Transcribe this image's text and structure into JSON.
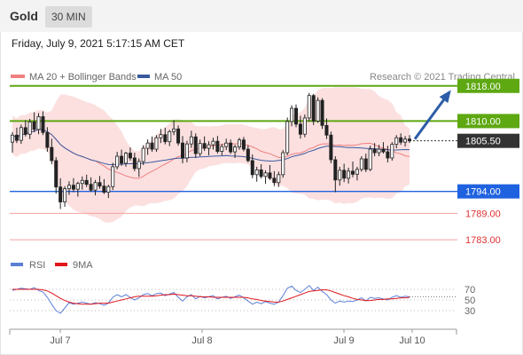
{
  "header": {
    "symbol": "Gold",
    "timeframe": "30 MIN",
    "datetime": "Friday, July 9, 2021 5:17:15 AM CET"
  },
  "legend": {
    "ma20_label": "MA 20 + Bollinger Bands",
    "ma50_label": "MA 50",
    "copyright": "Research © 2021 Trading Central",
    "rsi_label": "RSI",
    "rsi_ma_label": "9MA"
  },
  "colors": {
    "ma20": "#f08080",
    "bollinger_fill": "#fcdada",
    "ma50": "#3a5aa0",
    "resistance": "#5ea812",
    "support": "#1f62e0",
    "red_level": "#e33b3b",
    "candle": "#222222",
    "arrow": "#2d5da8",
    "current_price_bg": "#333333",
    "rsi": "#5b7fd6",
    "rsi_ma": "#e0161b"
  },
  "chart_data": {
    "type": "candlestick",
    "ylim": [
      1780,
      1823
    ],
    "x_ticks": [
      "Jul 7",
      "Jul 8",
      "Jul 9",
      "Jul 10"
    ],
    "ohlc": [
      [
        1805.2,
        1807.5,
        1802.8,
        1806.8
      ],
      [
        1806.8,
        1808.5,
        1805.0,
        1805.6
      ],
      [
        1805.6,
        1809.2,
        1804.8,
        1808.5
      ],
      [
        1808.5,
        1810.2,
        1806.5,
        1807.0
      ],
      [
        1807.0,
        1810.5,
        1805.9,
        1809.8
      ],
      [
        1809.8,
        1812.0,
        1807.5,
        1808.1
      ],
      [
        1808.1,
        1811.8,
        1807.0,
        1811.0
      ],
      [
        1811.0,
        1812.2,
        1806.8,
        1807.4
      ],
      [
        1807.4,
        1808.6,
        1803.0,
        1804.0
      ],
      [
        1804.0,
        1806.0,
        1800.2,
        1801.0
      ],
      [
        1801.0,
        1801.8,
        1793.5,
        1795.0
      ],
      [
        1795.0,
        1797.0,
        1790.0,
        1791.6
      ],
      [
        1791.6,
        1795.2,
        1790.5,
        1794.6
      ],
      [
        1794.6,
        1796.3,
        1793.2,
        1795.4
      ],
      [
        1795.4,
        1797.0,
        1793.8,
        1794.5
      ],
      [
        1794.5,
        1796.2,
        1792.8,
        1795.8
      ],
      [
        1795.8,
        1797.4,
        1794.4,
        1796.5
      ],
      [
        1796.5,
        1797.8,
        1795.0,
        1795.6
      ],
      [
        1795.6,
        1797.2,
        1793.9,
        1794.3
      ],
      [
        1794.3,
        1796.6,
        1793.1,
        1796.0
      ],
      [
        1796.0,
        1797.5,
        1794.6,
        1795.2
      ],
      [
        1795.2,
        1796.8,
        1793.4,
        1793.8
      ],
      [
        1793.8,
        1795.5,
        1792.5,
        1795.1
      ],
      [
        1795.1,
        1800.5,
        1794.3,
        1799.6
      ],
      [
        1799.6,
        1803.0,
        1799.0,
        1802.0
      ],
      [
        1802.0,
        1803.5,
        1799.8,
        1800.4
      ],
      [
        1800.4,
        1803.0,
        1799.6,
        1802.7
      ],
      [
        1802.7,
        1804.0,
        1801.0,
        1801.6
      ],
      [
        1801.6,
        1802.8,
        1798.6,
        1799.2
      ],
      [
        1799.2,
        1801.5,
        1797.3,
        1800.8
      ],
      [
        1800.8,
        1804.5,
        1800.0,
        1803.8
      ],
      [
        1803.8,
        1805.8,
        1802.3,
        1805.0
      ],
      [
        1805.0,
        1806.5,
        1803.0,
        1803.6
      ],
      [
        1803.6,
        1806.8,
        1803.0,
        1806.2
      ],
      [
        1806.2,
        1808.2,
        1805.0,
        1806.9
      ],
      [
        1806.9,
        1808.5,
        1804.7,
        1805.3
      ],
      [
        1805.3,
        1808.0,
        1804.3,
        1807.6
      ],
      [
        1807.6,
        1810.2,
        1806.8,
        1808.2
      ],
      [
        1808.2,
        1809.0,
        1804.4,
        1805.0
      ],
      [
        1805.0,
        1806.6,
        1800.4,
        1801.6
      ],
      [
        1801.6,
        1805.5,
        1800.6,
        1804.8
      ],
      [
        1804.8,
        1807.8,
        1803.9,
        1806.4
      ],
      [
        1806.4,
        1807.2,
        1801.6,
        1802.6
      ],
      [
        1802.6,
        1805.8,
        1802.0,
        1804.9
      ],
      [
        1804.9,
        1806.5,
        1803.2,
        1803.8
      ],
      [
        1803.8,
        1805.4,
        1802.2,
        1804.6
      ],
      [
        1804.6,
        1806.2,
        1803.5,
        1805.4
      ],
      [
        1805.4,
        1806.6,
        1802.6,
        1803.1
      ],
      [
        1803.1,
        1804.8,
        1802.2,
        1804.2
      ],
      [
        1804.2,
        1806.0,
        1803.4,
        1805.0
      ],
      [
        1805.0,
        1805.8,
        1802.5,
        1803.0
      ],
      [
        1803.0,
        1804.6,
        1801.6,
        1804.1
      ],
      [
        1804.1,
        1806.2,
        1803.5,
        1805.7
      ],
      [
        1805.7,
        1806.4,
        1803.1,
        1803.6
      ],
      [
        1803.6,
        1804.5,
        1800.6,
        1801.0
      ],
      [
        1801.0,
        1802.4,
        1797.0,
        1797.8
      ],
      [
        1797.8,
        1799.6,
        1796.2,
        1798.9
      ],
      [
        1798.9,
        1800.2,
        1796.9,
        1797.4
      ],
      [
        1797.4,
        1798.8,
        1795.7,
        1798.2
      ],
      [
        1798.2,
        1800.0,
        1796.6,
        1797.0
      ],
      [
        1797.0,
        1798.6,
        1795.2,
        1796.0
      ],
      [
        1796.0,
        1798.5,
        1795.0,
        1797.8
      ],
      [
        1797.8,
        1803.4,
        1797.1,
        1802.8
      ],
      [
        1802.8,
        1810.8,
        1802.2,
        1809.9
      ],
      [
        1809.9,
        1813.6,
        1808.8,
        1812.9
      ],
      [
        1812.9,
        1813.8,
        1808.6,
        1809.3
      ],
      [
        1809.3,
        1811.2,
        1806.0,
        1807.0
      ],
      [
        1807.0,
        1811.5,
        1806.3,
        1810.7
      ],
      [
        1810.7,
        1816.4,
        1809.9,
        1815.8
      ],
      [
        1815.8,
        1816.2,
        1809.1,
        1810.0
      ],
      [
        1810.0,
        1815.4,
        1809.6,
        1814.7
      ],
      [
        1814.7,
        1815.2,
        1808.2,
        1809.0
      ],
      [
        1809.0,
        1810.6,
        1805.9,
        1806.8
      ],
      [
        1806.8,
        1807.6,
        1800.4,
        1801.2
      ],
      [
        1801.2,
        1802.0,
        1793.8,
        1796.6
      ],
      [
        1796.6,
        1799.6,
        1795.3,
        1798.8
      ],
      [
        1798.8,
        1800.3,
        1796.1,
        1797.0
      ],
      [
        1797.0,
        1799.4,
        1795.8,
        1798.6
      ],
      [
        1798.6,
        1800.8,
        1797.2,
        1797.9
      ],
      [
        1797.9,
        1799.6,
        1796.5,
        1799.0
      ],
      [
        1799.0,
        1802.0,
        1798.5,
        1801.4
      ],
      [
        1801.4,
        1802.6,
        1798.4,
        1799.0
      ],
      [
        1799.0,
        1804.4,
        1798.6,
        1803.6
      ],
      [
        1803.6,
        1805.0,
        1802.0,
        1802.8
      ],
      [
        1802.8,
        1804.6,
        1802.0,
        1803.6
      ],
      [
        1803.6,
        1805.2,
        1802.6,
        1803.0
      ],
      [
        1803.0,
        1804.4,
        1800.6,
        1801.6
      ],
      [
        1801.6,
        1805.2,
        1801.0,
        1804.7
      ],
      [
        1804.7,
        1806.8,
        1803.8,
        1806.2
      ],
      [
        1806.2,
        1807.2,
        1804.6,
        1805.2
      ],
      [
        1805.2,
        1806.6,
        1804.2,
        1805.9
      ],
      [
        1805.9,
        1806.8,
        1805.0,
        1805.5
      ]
    ],
    "levels": [
      {
        "price": 1818.0,
        "label": "1818.00",
        "kind": "resistance"
      },
      {
        "price": 1810.0,
        "label": "1810.00",
        "kind": "resistance"
      },
      {
        "price": 1805.5,
        "label": "1805.50",
        "kind": "current"
      },
      {
        "price": 1794.0,
        "label": "1794.00",
        "kind": "support"
      },
      {
        "price": 1789.0,
        "label": "1789.00",
        "kind": "support_minor"
      },
      {
        "price": 1783.0,
        "label": "1783.00",
        "kind": "support_minor"
      }
    ],
    "rsi": {
      "ticks": [
        70,
        50,
        30
      ],
      "ylim": [
        0,
        100
      ],
      "rsi_values": [
        68,
        70,
        72,
        71,
        70,
        73,
        68,
        65,
        55,
        42,
        30,
        25,
        35,
        45,
        42,
        44,
        46,
        44,
        42,
        45,
        43,
        40,
        44,
        55,
        60,
        56,
        60,
        55,
        50,
        54,
        60,
        62,
        58,
        62,
        63,
        58,
        61,
        64,
        55,
        48,
        56,
        60,
        52,
        57,
        54,
        56,
        58,
        52,
        55,
        57,
        53,
        56,
        59,
        54,
        48,
        42,
        46,
        43,
        47,
        44,
        42,
        46,
        58,
        72,
        76,
        68,
        64,
        70,
        77,
        68,
        74,
        66,
        60,
        50,
        44,
        48,
        46,
        48,
        47,
        50,
        54,
        48,
        55,
        53,
        54,
        52,
        50,
        55,
        58,
        55,
        57,
        56
      ],
      "ma_values": [
        70,
        70,
        70,
        70,
        70,
        70,
        70,
        69,
        67,
        63,
        58,
        53,
        49,
        46,
        44,
        43,
        42,
        42,
        42,
        43,
        44,
        44,
        44,
        46,
        48,
        50,
        52,
        54,
        56,
        57,
        57,
        57,
        57,
        58,
        59,
        60,
        60,
        61,
        60,
        59,
        58,
        58,
        57,
        56,
        56,
        56,
        55,
        55,
        55,
        55,
        55,
        55,
        55,
        55,
        54,
        52,
        51,
        49,
        48,
        47,
        46,
        46,
        48,
        51,
        54,
        57,
        60,
        63,
        66,
        67,
        68,
        69,
        69,
        67,
        64,
        61,
        58,
        56,
        53,
        51,
        50,
        49,
        49,
        50,
        51,
        51,
        52,
        52,
        53,
        54,
        54,
        55
      ]
    }
  }
}
